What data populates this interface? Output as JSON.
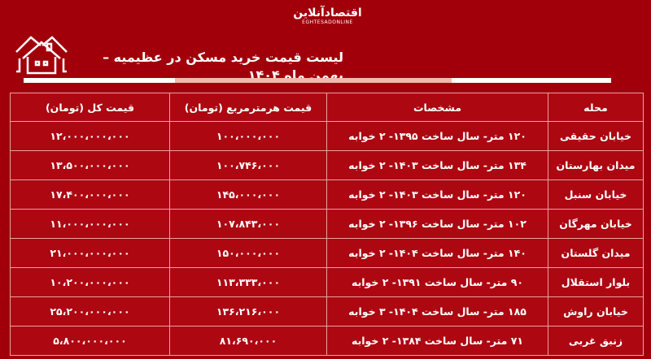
{
  "brand": {
    "logo_fa": "اقتصادآنلاین",
    "logo_en": "EGHTESADONLINE"
  },
  "title": "لیست قیمت خرید مسکن در عظیمیه – بهمن ماه ۱۴۰۴",
  "colors": {
    "background": "#a1000b",
    "cell": "#ad0712",
    "border": "#e9a3a3",
    "accent_bar": "#f2b9ad"
  },
  "table": {
    "headers": [
      "محله",
      "مشخصات",
      "قیمت هرمترمربع (تومان)",
      "قیمت کل (تومان)"
    ],
    "rows": [
      [
        "خیابان حقیقی",
        "۱۲۰ متر- سال ساخت ۱۳۹۵- ۲ خوابه",
        "۱۰۰،۰۰۰،۰۰۰",
        "۱۲،۰۰۰،۰۰۰،۰۰۰"
      ],
      [
        "میدان بهارستان",
        "۱۳۴ متر- سال ساخت ۱۴۰۳- ۲ خوابه",
        "۱۰۰،۷۴۶،۰۰۰",
        "۱۳،۵۰۰،۰۰۰،۰۰۰"
      ],
      [
        "خیابان سنبل",
        "۱۲۰ متر- سال ساخت ۱۴۰۳- ۲ خوابه",
        "۱۴۵،۰۰۰،۰۰۰",
        "۱۷،۴۰۰،۰۰۰،۰۰۰"
      ],
      [
        "خیابان مهرگان",
        "۱۰۲ متر- سال ساخت ۱۳۹۶- ۲ خوابه",
        "۱۰۷،۸۴۳،۰۰۰",
        "۱۱،۰۰۰،۰۰۰،۰۰۰"
      ],
      [
        "میدان گلستان",
        "۱۴۰ متر- سال ساخت ۱۴۰۴- ۲ خوابه",
        "۱۵۰،۰۰۰،۰۰۰",
        "۲۱،۰۰۰،۰۰۰،۰۰۰"
      ],
      [
        "بلوار استقلال",
        "۹۰ متر- سال ساخت ۱۳۹۱- ۲ خوابه",
        "۱۱۳،۳۳۳،۰۰۰",
        "۱۰،۲۰۰،۰۰۰،۰۰۰"
      ],
      [
        "خیابان راوش",
        "۱۸۵ متر- سال ساخت ۱۴۰۴- ۳ خوابه",
        "۱۳۶،۲۱۶،۰۰۰",
        "۲۵،۲۰۰،۰۰۰،۰۰۰"
      ],
      [
        "زنبق غربی",
        "۷۱ متر- سال ساخت ۱۳۸۴- ۲ خوابه",
        "۸۱،۶۹۰،۰۰۰",
        "۵،۸۰۰،۰۰۰،۰۰۰"
      ]
    ]
  }
}
